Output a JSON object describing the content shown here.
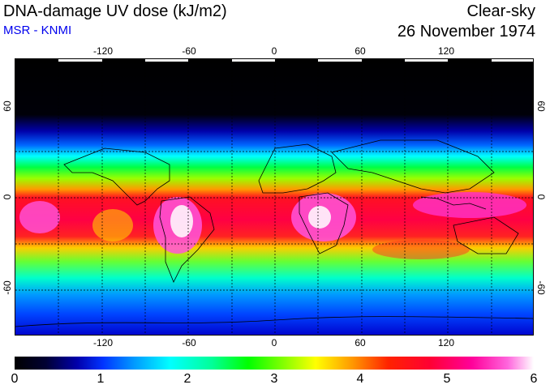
{
  "header": {
    "title": "DNA-damage UV dose (kJ/m2)",
    "subtitle": "MSR - KNMI",
    "mode": "Clear-sky",
    "date": "26 November 1974"
  },
  "map": {
    "lon_ticks": [
      "-120",
      "-60",
      "0",
      "60",
      "120"
    ],
    "lat_ticks_left": [
      "60",
      "0",
      "-60"
    ],
    "lat_ticks_right": [
      "60",
      "0",
      "-60"
    ]
  },
  "colorbar": {
    "ticks": [
      "0",
      "1",
      "2",
      "3",
      "4",
      "5",
      "6"
    ]
  },
  "colors": {
    "subtitle": "#0000ee",
    "frame": "#000000"
  }
}
